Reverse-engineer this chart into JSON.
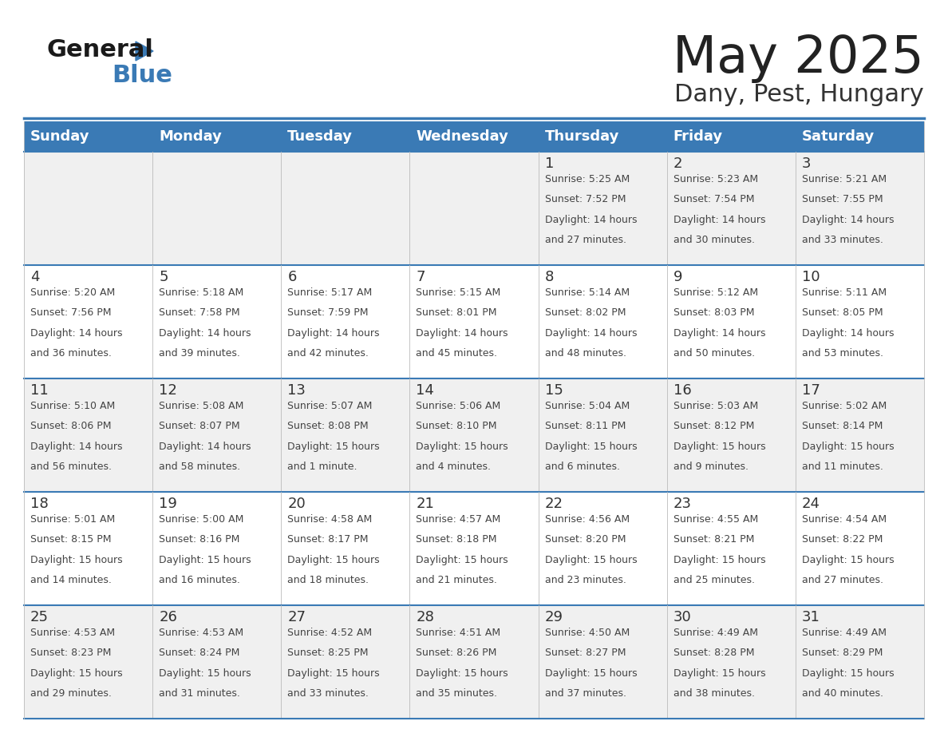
{
  "title": "May 2025",
  "subtitle": "Dany, Pest, Hungary",
  "days_of_week": [
    "Sunday",
    "Monday",
    "Tuesday",
    "Wednesday",
    "Thursday",
    "Friday",
    "Saturday"
  ],
  "header_bg": "#3a7ab5",
  "header_text": "#ffffff",
  "row_bg_even": "#f0f0f0",
  "row_bg_odd": "#ffffff",
  "cell_border_color": "#3a7ab5",
  "day_num_color": "#333333",
  "info_color": "#444444",
  "title_color": "#222222",
  "subtitle_color": "#333333",
  "logo_general_color": "#1a1a1a",
  "logo_blue_color": "#3a7ab5",
  "calendar": [
    [
      null,
      null,
      null,
      null,
      {
        "day": 1,
        "sunrise": "5:25 AM",
        "sunset": "7:52 PM",
        "daylight": "14 hours and 27 minutes"
      },
      {
        "day": 2,
        "sunrise": "5:23 AM",
        "sunset": "7:54 PM",
        "daylight": "14 hours and 30 minutes"
      },
      {
        "day": 3,
        "sunrise": "5:21 AM",
        "sunset": "7:55 PM",
        "daylight": "14 hours and 33 minutes"
      }
    ],
    [
      {
        "day": 4,
        "sunrise": "5:20 AM",
        "sunset": "7:56 PM",
        "daylight": "14 hours and 36 minutes"
      },
      {
        "day": 5,
        "sunrise": "5:18 AM",
        "sunset": "7:58 PM",
        "daylight": "14 hours and 39 minutes"
      },
      {
        "day": 6,
        "sunrise": "5:17 AM",
        "sunset": "7:59 PM",
        "daylight": "14 hours and 42 minutes"
      },
      {
        "day": 7,
        "sunrise": "5:15 AM",
        "sunset": "8:01 PM",
        "daylight": "14 hours and 45 minutes"
      },
      {
        "day": 8,
        "sunrise": "5:14 AM",
        "sunset": "8:02 PM",
        "daylight": "14 hours and 48 minutes"
      },
      {
        "day": 9,
        "sunrise": "5:12 AM",
        "sunset": "8:03 PM",
        "daylight": "14 hours and 50 minutes"
      },
      {
        "day": 10,
        "sunrise": "5:11 AM",
        "sunset": "8:05 PM",
        "daylight": "14 hours and 53 minutes"
      }
    ],
    [
      {
        "day": 11,
        "sunrise": "5:10 AM",
        "sunset": "8:06 PM",
        "daylight": "14 hours and 56 minutes"
      },
      {
        "day": 12,
        "sunrise": "5:08 AM",
        "sunset": "8:07 PM",
        "daylight": "14 hours and 58 minutes"
      },
      {
        "day": 13,
        "sunrise": "5:07 AM",
        "sunset": "8:08 PM",
        "daylight": "15 hours and 1 minute"
      },
      {
        "day": 14,
        "sunrise": "5:06 AM",
        "sunset": "8:10 PM",
        "daylight": "15 hours and 4 minutes"
      },
      {
        "day": 15,
        "sunrise": "5:04 AM",
        "sunset": "8:11 PM",
        "daylight": "15 hours and 6 minutes"
      },
      {
        "day": 16,
        "sunrise": "5:03 AM",
        "sunset": "8:12 PM",
        "daylight": "15 hours and 9 minutes"
      },
      {
        "day": 17,
        "sunrise": "5:02 AM",
        "sunset": "8:14 PM",
        "daylight": "15 hours and 11 minutes"
      }
    ],
    [
      {
        "day": 18,
        "sunrise": "5:01 AM",
        "sunset": "8:15 PM",
        "daylight": "15 hours and 14 minutes"
      },
      {
        "day": 19,
        "sunrise": "5:00 AM",
        "sunset": "8:16 PM",
        "daylight": "15 hours and 16 minutes"
      },
      {
        "day": 20,
        "sunrise": "4:58 AM",
        "sunset": "8:17 PM",
        "daylight": "15 hours and 18 minutes"
      },
      {
        "day": 21,
        "sunrise": "4:57 AM",
        "sunset": "8:18 PM",
        "daylight": "15 hours and 21 minutes"
      },
      {
        "day": 22,
        "sunrise": "4:56 AM",
        "sunset": "8:20 PM",
        "daylight": "15 hours and 23 minutes"
      },
      {
        "day": 23,
        "sunrise": "4:55 AM",
        "sunset": "8:21 PM",
        "daylight": "15 hours and 25 minutes"
      },
      {
        "day": 24,
        "sunrise": "4:54 AM",
        "sunset": "8:22 PM",
        "daylight": "15 hours and 27 minutes"
      }
    ],
    [
      {
        "day": 25,
        "sunrise": "4:53 AM",
        "sunset": "8:23 PM",
        "daylight": "15 hours and 29 minutes"
      },
      {
        "day": 26,
        "sunrise": "4:53 AM",
        "sunset": "8:24 PM",
        "daylight": "15 hours and 31 minutes"
      },
      {
        "day": 27,
        "sunrise": "4:52 AM",
        "sunset": "8:25 PM",
        "daylight": "15 hours and 33 minutes"
      },
      {
        "day": 28,
        "sunrise": "4:51 AM",
        "sunset": "8:26 PM",
        "daylight": "15 hours and 35 minutes"
      },
      {
        "day": 29,
        "sunrise": "4:50 AM",
        "sunset": "8:27 PM",
        "daylight": "15 hours and 37 minutes"
      },
      {
        "day": 30,
        "sunrise": "4:49 AM",
        "sunset": "8:28 PM",
        "daylight": "15 hours and 38 minutes"
      },
      {
        "day": 31,
        "sunrise": "4:49 AM",
        "sunset": "8:29 PM",
        "daylight": "15 hours and 40 minutes"
      }
    ]
  ]
}
